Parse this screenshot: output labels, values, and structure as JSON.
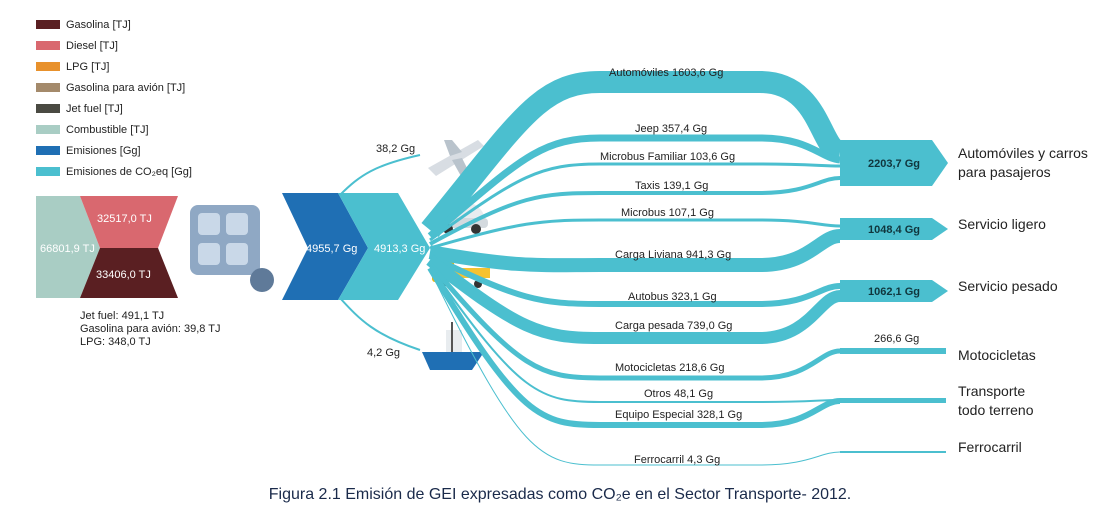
{
  "legend": [
    {
      "label": "Gasolina [TJ]",
      "color": "#5a1f22"
    },
    {
      "label": "Diesel [TJ]",
      "color": "#d9686f"
    },
    {
      "label": "LPG [TJ]",
      "color": "#e8912c"
    },
    {
      "label": "Gasolina para avión [TJ]",
      "color": "#a48a6b"
    },
    {
      "label": "Jet fuel [TJ]",
      "color": "#4a4a42"
    },
    {
      "label": "Combustible [TJ]",
      "color": "#a9cdc4"
    },
    {
      "label": "Emisiones [Gg]",
      "color": "#1f6fb4"
    },
    {
      "label": "Emisiones de CO₂eq [Gg]",
      "color": "#4bbfcf"
    }
  ],
  "fuel": {
    "total": "66801,9 TJ",
    "diesel": "32517,0 TJ",
    "gasolina": "33406,0 TJ",
    "notes": [
      "Jet fuel: 491,1 TJ",
      "Gasolina para avión: 39,8 TJ",
      "LPG: 348,0 TJ"
    ]
  },
  "emissions": {
    "total": "4955,7 Gg",
    "co2eq": "4913,3 Gg",
    "air": "38,2 Gg",
    "sea": "4,2 Gg"
  },
  "flows": [
    {
      "label": "Automóviles  1603,6 Gg"
    },
    {
      "label": "Jeep  357,4 Gg"
    },
    {
      "label": "Microbus Familiar  103,6 Gg"
    },
    {
      "label": "Taxis  139,1 Gg"
    },
    {
      "label": "Microbus  107,1 Gg"
    },
    {
      "label": "Carga Liviana  941,3 Gg"
    },
    {
      "label": "Autobus  323,1 Gg"
    },
    {
      "label": "Carga pesada  739,0 Gg"
    },
    {
      "label": "Motocicletas  218,6 Gg"
    },
    {
      "label": "Otros   48,1 Gg"
    },
    {
      "label": "Equipo Especial  328,1 Gg"
    },
    {
      "label": "Ferrocarril  4,3 Gg"
    }
  ],
  "categories": [
    {
      "value": "2203,7 Gg",
      "name_line1": "Automóviles y carros",
      "name_line2": "para pasajeros"
    },
    {
      "value": "1048,4 Gg",
      "name_line1": "Servicio ligero",
      "name_line2": ""
    },
    {
      "value": "1062,1 Gg",
      "name_line1": "Servicio pesado",
      "name_line2": ""
    },
    {
      "value": "266,6 Gg",
      "name_line1": "Motocicletas",
      "name_line2": ""
    },
    {
      "value": "",
      "name_line1": "Transporte",
      "name_line2": "todo terreno"
    },
    {
      "value": "",
      "name_line1": "Ferrocarril",
      "name_line2": ""
    }
  ],
  "caption": "Figura 2.1 Emisión de GEI expresadas como CO₂e en el Sector Transporte- 2012.",
  "icons": [
    "airplane-icon",
    "car-icon",
    "truck-icon",
    "boat-icon",
    "engine-icon"
  ]
}
